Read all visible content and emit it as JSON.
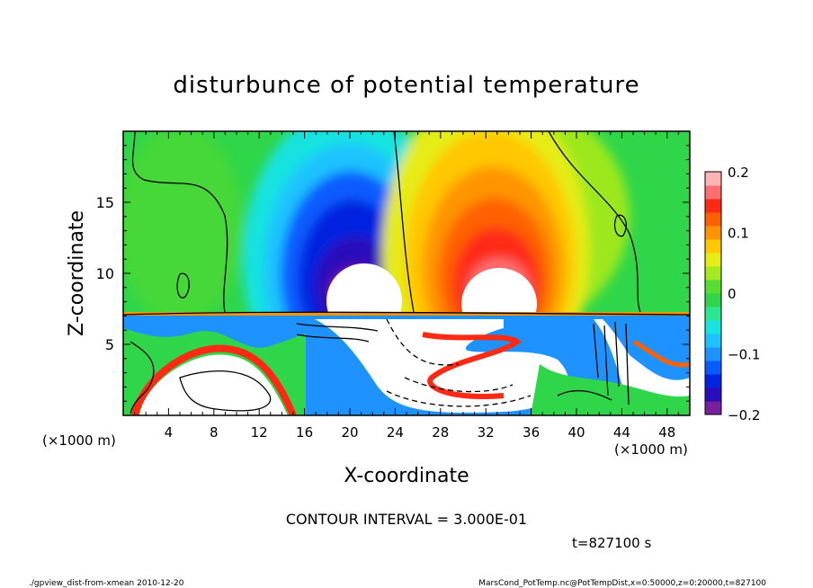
{
  "chart_data": {
    "type": "heatmap",
    "title": "disturbunce of potential temperature",
    "xlabel": "X-coordinate",
    "ylabel": "Z-coordinate",
    "x_unit": "(×1000 m)",
    "y_unit": "(×1000 m)",
    "xlim": [
      0,
      50
    ],
    "ylim": [
      0,
      20
    ],
    "x_ticks": [
      "4",
      "8",
      "12",
      "16",
      "20",
      "24",
      "28",
      "32",
      "36",
      "40",
      "44",
      "48"
    ],
    "y_ticks": [
      "5",
      "10",
      "15"
    ],
    "colorbar": {
      "range": [
        -0.2,
        0.2
      ],
      "tick_labels": [
        "0.2",
        "0.1",
        "0",
        "−0.1",
        "−0.2"
      ],
      "tick_values": [
        0.2,
        0.1,
        0,
        -0.1,
        -0.2
      ],
      "colors": [
        "#7a1f9e",
        "#2a0dba",
        "#0024e0",
        "#0a5bff",
        "#1e93ff",
        "#1cc3ff",
        "#19e3e0",
        "#2ae890",
        "#32d44b",
        "#55dd32",
        "#a4ea1e",
        "#e6ec14",
        "#ffc800",
        "#ff9400",
        "#ff6000",
        "#ff2a14",
        "#ff6f6f",
        "#ffb4b4"
      ]
    },
    "features": [
      {
        "label": "cold anomaly aloft",
        "center": [
          20.5,
          10.5
        ],
        "value": -0.2
      },
      {
        "label": "warm anomaly aloft",
        "center": [
          33,
          10.5
        ],
        "value": 0.2
      },
      {
        "label": "boundary layer",
        "z_top": 7.5
      }
    ]
  },
  "annotations": {
    "contour_interval": "CONTOUR INTERVAL = 3.000E-01",
    "time": "t=827100 s",
    "footer_left": "./gpview_dist-from-xmean  2010-12-20",
    "footer_right": "MarsCond_PotTemp.nc@PotTempDist,x=0:50000,z=0:20000,t=827100"
  }
}
